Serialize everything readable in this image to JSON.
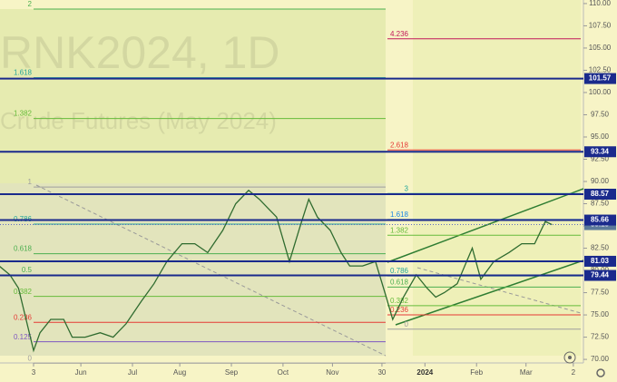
{
  "watermark": {
    "symbol": "RNK2024, 1D",
    "description": "Crude Futures (May 2024)"
  },
  "chart_data": {
    "type": "line",
    "color": "#2f6b2f",
    "x": [
      -16,
      -11,
      -7,
      -3,
      0,
      3,
      8,
      14,
      18,
      24,
      31,
      37,
      43,
      50,
      56,
      62,
      69,
      75,
      81,
      88,
      94,
      100,
      105,
      109,
      113,
      119,
      124,
      128,
      132,
      138,
      143,
      147,
      153,
      159,
      164,
      167,
      172,
      178,
      183,
      187,
      191,
      197,
      204,
      208,
      214,
      221,
      227,
      233,
      238,
      241
    ],
    "values": [
      80.5,
      79.5,
      78,
      74,
      71,
      73,
      74.5,
      74.5,
      72.5,
      72.5,
      73,
      72.5,
      74,
      76.5,
      78.5,
      81,
      83,
      83,
      82,
      84.5,
      87.5,
      89,
      88,
      87,
      86,
      81,
      85,
      88,
      86,
      84.5,
      82,
      80.5,
      80.5,
      81,
      77,
      74.5,
      77,
      79.5,
      78,
      77,
      77.5,
      78.5,
      82.5,
      79,
      81,
      82,
      83,
      83,
      85.5,
      85.15
    ],
    "xlim": [
      -15.6,
      255.7
    ],
    "ylim": [
      69.6,
      110.4
    ],
    "xticks": [
      {
        "value": 0,
        "label": "3"
      },
      {
        "value": 22,
        "label": "Jun"
      },
      {
        "value": 46,
        "label": "Jul"
      },
      {
        "value": 68,
        "label": "Aug"
      },
      {
        "value": 92,
        "label": "Sep"
      },
      {
        "value": 116,
        "label": "Oct"
      },
      {
        "value": 139,
        "label": "Nov"
      },
      {
        "value": 162,
        "label": "30"
      },
      {
        "value": 182,
        "label": "2024"
      },
      {
        "value": 206,
        "label": "Feb"
      },
      {
        "value": 229,
        "label": "Mar"
      },
      {
        "value": 251,
        "label": "2"
      }
    ],
    "yticks": [
      {
        "value": 110,
        "label": "110.00"
      },
      {
        "value": 107.5,
        "label": "107.50"
      },
      {
        "value": 105,
        "label": "105.00"
      },
      {
        "value": 102.5,
        "label": "102.50"
      },
      {
        "value": 100,
        "label": "100.00"
      },
      {
        "value": 97.5,
        "label": "97.50"
      },
      {
        "value": 95,
        "label": "95.00"
      },
      {
        "value": 92.5,
        "label": "92.50"
      },
      {
        "value": 90,
        "label": "90.00"
      },
      {
        "value": 87.5,
        "label": "87.50"
      },
      {
        "value": 85,
        "label": "85.00"
      },
      {
        "value": 82.5,
        "label": "82.50"
      },
      {
        "value": 80,
        "label": "80.00"
      },
      {
        "value": 77.5,
        "label": "77.50"
      },
      {
        "value": 75,
        "label": "75.00"
      },
      {
        "value": 72.5,
        "label": "72.50"
      },
      {
        "value": 70,
        "label": "70.00"
      }
    ],
    "levels": [
      101.57,
      93.34,
      88.57,
      85.66,
      81.03,
      79.44
    ],
    "level_color": "#1a2a8c",
    "last_price": 85.15,
    "fib_left": [
      {
        "label": "2",
        "value": 109.38,
        "color": "#4caf50"
      },
      {
        "label": "1.618",
        "value": 101.67,
        "color": "#26a69a"
      },
      {
        "label": "1.382",
        "value": 97.08,
        "color": "#66bb3a"
      },
      {
        "label": "1",
        "value": 89.38,
        "color": "#9e9e9e"
      },
      {
        "label": "0.786",
        "value": 85.21,
        "color": "#26a69a"
      },
      {
        "label": "0.618",
        "value": 81.88,
        "color": "#4caf50"
      },
      {
        "label": "0.5",
        "value": 79.48,
        "color": "#4caf50"
      },
      {
        "label": "0.382",
        "value": 77.08,
        "color": "#66bb3a"
      },
      {
        "label": "0.236",
        "value": 74.17,
        "color": "#e53935"
      },
      {
        "label": "0.125",
        "value": 71.98,
        "color": "#7e57c2"
      },
      {
        "label": "0",
        "value": 69.58,
        "color": "#9e9e9e"
      }
    ],
    "fib_right": [
      {
        "label": "4.236",
        "value": 106.04,
        "color": "#c2185b"
      },
      {
        "label": "2.618",
        "value": 93.54,
        "color": "#e53935"
      },
      {
        "label": "3",
        "value": 88.65,
        "color": "#26a69a"
      },
      {
        "label": "1.618",
        "value": 85.73,
        "color": "#1e88e5"
      },
      {
        "label": "1.382",
        "value": 83.96,
        "color": "#66bb3a"
      },
      {
        "label": "0.786",
        "value": 79.38,
        "color": "#26a69a"
      },
      {
        "label": "0.618",
        "value": 78.13,
        "color": "#4caf50"
      },
      {
        "label": "0.382",
        "value": 76.04,
        "color": "#66bb3a"
      },
      {
        "label": "0.236",
        "value": 75.0,
        "color": "#e53935"
      },
      {
        "label": "0",
        "value": 73.4,
        "color": "#9e9e9e"
      }
    ]
  }
}
